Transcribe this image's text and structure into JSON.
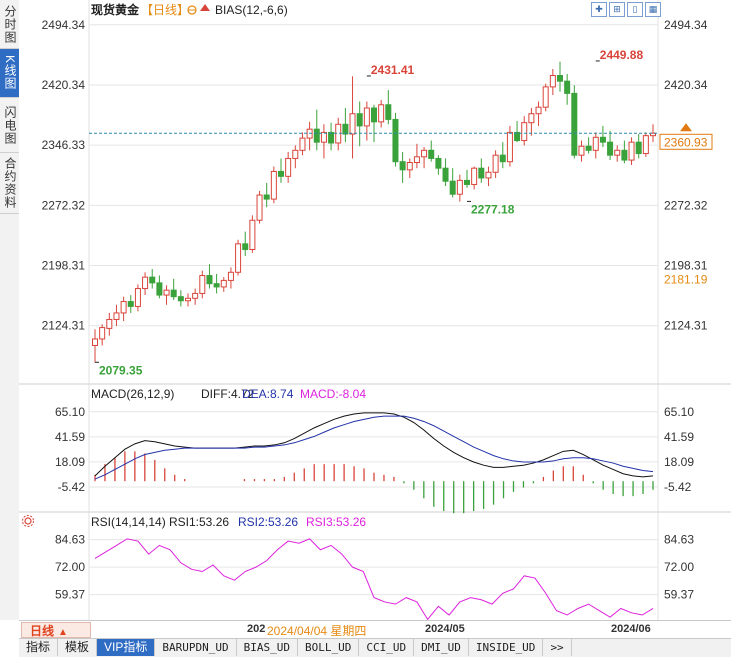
{
  "sidebar": {
    "tabs": [
      {
        "label": "分时图",
        "active": false
      },
      {
        "label": "K线图",
        "active": true
      },
      {
        "label": "闪电图",
        "active": false
      },
      {
        "label": "合约资料",
        "active": false
      }
    ]
  },
  "header": {
    "instrument": "现货黄金",
    "period": "【日线】",
    "indicator_label": "BIAS(12,-6,6)",
    "toolbar_icons": [
      "crosshair-icon",
      "zoom-in-icon",
      "bookmark-icon",
      "layout-icon"
    ]
  },
  "price_panel": {
    "current_price_label": "2360.93",
    "marker_label": "2181.19",
    "high_label_1": "2431.41",
    "high_label_2": "2449.88",
    "low_label_1": "2079.35",
    "low_label_2": "2277.18"
  },
  "macd_panel": {
    "title": "MACD(26,12,9)",
    "diff_label": "DIFF:4.72",
    "dea_label": "DEA:8.74",
    "macd_label": "MACD:-8.04"
  },
  "rsi_panel": {
    "title": "RSI(14,14,14)",
    "rsi1_label": "RSI1:53.26",
    "rsi2_label": "RSI2:53.26",
    "rsi3_label": "RSI3:53.26"
  },
  "bottom_bar": {
    "period_button": "日线",
    "date_tooltip": "2024/04/04 星期四",
    "axis_labels": [
      "2024/05",
      "2024/06"
    ],
    "axis_label_partial": "202"
  },
  "indicator_tabs": [
    "指标",
    "模板",
    "VIP指标",
    "BARUPDN_UD",
    "BIAS_UD",
    "BOLL_UD",
    "CCI_UD",
    "DMI_UD",
    "INSIDE_UD",
    ">>"
  ],
  "colors": {
    "up": "#d9443a",
    "down": "#3aa23a",
    "diff": "#111111",
    "dea": "#2233aa",
    "rsi": "#dd22dd",
    "current_price": "#e07a10",
    "grid": "#e6e6e6",
    "accent": "#2f6cc4"
  },
  "chart_data": [
    {
      "type": "candlestick",
      "title": "现货黄金",
      "y_ticks": [
        2494.34,
        2420.34,
        2346.33,
        2272.32,
        2198.31,
        2124.31
      ],
      "ylim": [
        2060,
        2515
      ],
      "current_price": 2360.93,
      "marked_price": 2181.19,
      "annotations": [
        {
          "text": "2431.41",
          "value": 2431.41,
          "index": 38
        },
        {
          "text": "2449.88",
          "value": 2449.88,
          "index": 70
        },
        {
          "text": "2079.35",
          "value": 2079.35,
          "index": 0
        },
        {
          "text": "2277.18",
          "value": 2277.18,
          "index": 52
        }
      ],
      "ohlc": [
        [
          2100,
          2120,
          2079,
          2108
        ],
        [
          2108,
          2126,
          2100,
          2122
        ],
        [
          2121,
          2140,
          2112,
          2132
        ],
        [
          2132,
          2150,
          2124,
          2140
        ],
        [
          2140,
          2160,
          2130,
          2154
        ],
        [
          2154,
          2162,
          2140,
          2148
        ],
        [
          2148,
          2175,
          2142,
          2170
        ],
        [
          2170,
          2190,
          2162,
          2184
        ],
        [
          2184,
          2194,
          2170,
          2177
        ],
        [
          2177,
          2186,
          2158,
          2162
        ],
        [
          2162,
          2174,
          2150,
          2168
        ],
        [
          2168,
          2182,
          2156,
          2160
        ],
        [
          2160,
          2168,
          2148,
          2155
        ],
        [
          2155,
          2164,
          2148,
          2158
        ],
        [
          2158,
          2170,
          2150,
          2164
        ],
        [
          2164,
          2192,
          2158,
          2186
        ],
        [
          2186,
          2200,
          2170,
          2176
        ],
        [
          2176,
          2188,
          2164,
          2172
        ],
        [
          2172,
          2184,
          2166,
          2180
        ],
        [
          2180,
          2196,
          2170,
          2190
        ],
        [
          2190,
          2230,
          2186,
          2225
        ],
        [
          2225,
          2240,
          2210,
          2218
        ],
        [
          2218,
          2260,
          2214,
          2254
        ],
        [
          2254,
          2290,
          2250,
          2285
        ],
        [
          2285,
          2300,
          2270,
          2280
        ],
        [
          2280,
          2320,
          2275,
          2314
        ],
        [
          2314,
          2330,
          2300,
          2308
        ],
        [
          2308,
          2338,
          2300,
          2330
        ],
        [
          2330,
          2346,
          2318,
          2340
        ],
        [
          2340,
          2362,
          2334,
          2355
        ],
        [
          2355,
          2375,
          2340,
          2366
        ],
        [
          2366,
          2390,
          2340,
          2350
        ],
        [
          2350,
          2372,
          2330,
          2362
        ],
        [
          2362,
          2374,
          2340,
          2349
        ],
        [
          2349,
          2380,
          2340,
          2372
        ],
        [
          2372,
          2392,
          2350,
          2360
        ],
        [
          2360,
          2431,
          2330,
          2385
        ],
        [
          2385,
          2400,
          2345,
          2370
        ],
        [
          2370,
          2400,
          2352,
          2392
        ],
        [
          2392,
          2396,
          2350,
          2375
        ],
        [
          2375,
          2402,
          2368,
          2396
        ],
        [
          2396,
          2414,
          2372,
          2378
        ],
        [
          2378,
          2386,
          2320,
          2326
        ],
        [
          2326,
          2338,
          2300,
          2316
        ],
        [
          2316,
          2330,
          2306,
          2325
        ],
        [
          2325,
          2348,
          2318,
          2332
        ],
        [
          2332,
          2344,
          2318,
          2340
        ],
        [
          2340,
          2352,
          2326,
          2330
        ],
        [
          2330,
          2334,
          2310,
          2318
        ],
        [
          2318,
          2330,
          2296,
          2302
        ],
        [
          2302,
          2318,
          2282,
          2286
        ],
        [
          2286,
          2310,
          2277,
          2303
        ],
        [
          2303,
          2316,
          2294,
          2298
        ],
        [
          2298,
          2320,
          2292,
          2318
        ],
        [
          2318,
          2330,
          2300,
          2306
        ],
        [
          2306,
          2320,
          2296,
          2313
        ],
        [
          2313,
          2340,
          2306,
          2334
        ],
        [
          2334,
          2350,
          2318,
          2326
        ],
        [
          2326,
          2370,
          2320,
          2362
        ],
        [
          2362,
          2376,
          2350,
          2352
        ],
        [
          2352,
          2382,
          2346,
          2374
        ],
        [
          2374,
          2392,
          2358,
          2385
        ],
        [
          2385,
          2400,
          2370,
          2393
        ],
        [
          2393,
          2422,
          2388,
          2418
        ],
        [
          2418,
          2440,
          2408,
          2432
        ],
        [
          2432,
          2449,
          2412,
          2425
        ],
        [
          2425,
          2434,
          2396,
          2410
        ],
        [
          2410,
          2420,
          2330,
          2334
        ],
        [
          2334,
          2352,
          2326,
          2345
        ],
        [
          2345,
          2356,
          2336,
          2340
        ],
        [
          2340,
          2362,
          2330,
          2356
        ],
        [
          2356,
          2370,
          2344,
          2350
        ],
        [
          2350,
          2364,
          2328,
          2334
        ],
        [
          2334,
          2346,
          2326,
          2340
        ],
        [
          2340,
          2352,
          2324,
          2328
        ],
        [
          2328,
          2356,
          2322,
          2350
        ],
        [
          2350,
          2360,
          2330,
          2336
        ],
        [
          2336,
          2362,
          2332,
          2358
        ],
        [
          2358,
          2372,
          2350,
          2361
        ]
      ]
    },
    {
      "type": "line",
      "title": "MACD(26,12,9)",
      "y_ticks": [
        65.1,
        41.59,
        18.09,
        -5.42
      ],
      "ylim": [
        -27,
        78
      ],
      "series": [
        {
          "name": "DIFF",
          "values": [
            5,
            14,
            22,
            30,
            35,
            38,
            37,
            35,
            33,
            32,
            31,
            31,
            31,
            31,
            31,
            32,
            33,
            33,
            34,
            36,
            40,
            45,
            50,
            54,
            58,
            61,
            63,
            64,
            64,
            64,
            63,
            60,
            55,
            48,
            40,
            33,
            27,
            22,
            18,
            15,
            13,
            13,
            14,
            15,
            17,
            20,
            24,
            28,
            29,
            25,
            20,
            15,
            11,
            7,
            5,
            4,
            5
          ]
        },
        {
          "name": "DEA",
          "values": [
            2,
            6,
            11,
            16,
            21,
            25,
            27,
            29,
            30,
            31,
            31,
            31,
            31,
            31,
            31,
            31,
            32,
            32,
            33,
            34,
            36,
            39,
            42,
            46,
            50,
            53,
            56,
            58,
            60,
            61,
            61,
            61,
            59,
            56,
            52,
            47,
            42,
            37,
            32,
            28,
            24,
            21,
            19,
            18,
            18,
            18,
            19,
            21,
            22,
            22,
            21,
            19,
            17,
            14,
            12,
            10,
            9
          ]
        },
        {
          "name": "MACD",
          "values": [
            6,
            16,
            22,
            28,
            28,
            26,
            20,
            12,
            6,
            2,
            0,
            0,
            0,
            0,
            0,
            2,
            2,
            2,
            2,
            4,
            8,
            12,
            16,
            16,
            16,
            16,
            14,
            12,
            8,
            6,
            4,
            -2,
            -8,
            -16,
            -24,
            -28,
            -30,
            -30,
            -28,
            -26,
            -22,
            -16,
            -10,
            -6,
            -2,
            4,
            10,
            14,
            14,
            6,
            -2,
            -8,
            -12,
            -14,
            -14,
            -12,
            -8
          ]
        }
      ]
    },
    {
      "type": "line",
      "title": "RSI(14,14,14)",
      "y_ticks": [
        84.63,
        72.0,
        59.37
      ],
      "ylim": [
        50,
        90
      ],
      "series": [
        {
          "name": "RSI",
          "values": [
            76,
            79,
            82,
            85,
            84,
            78,
            82,
            80,
            74,
            71,
            70,
            73,
            68,
            66,
            70,
            72,
            75,
            80,
            84,
            83,
            85,
            80,
            82,
            78,
            72,
            70,
            58,
            56,
            55,
            58,
            56,
            48,
            54,
            50,
            56,
            58,
            57,
            55,
            60,
            62,
            68,
            67,
            60,
            52,
            50,
            53,
            55,
            52,
            49,
            53,
            51,
            50,
            53
          ]
        }
      ]
    }
  ]
}
